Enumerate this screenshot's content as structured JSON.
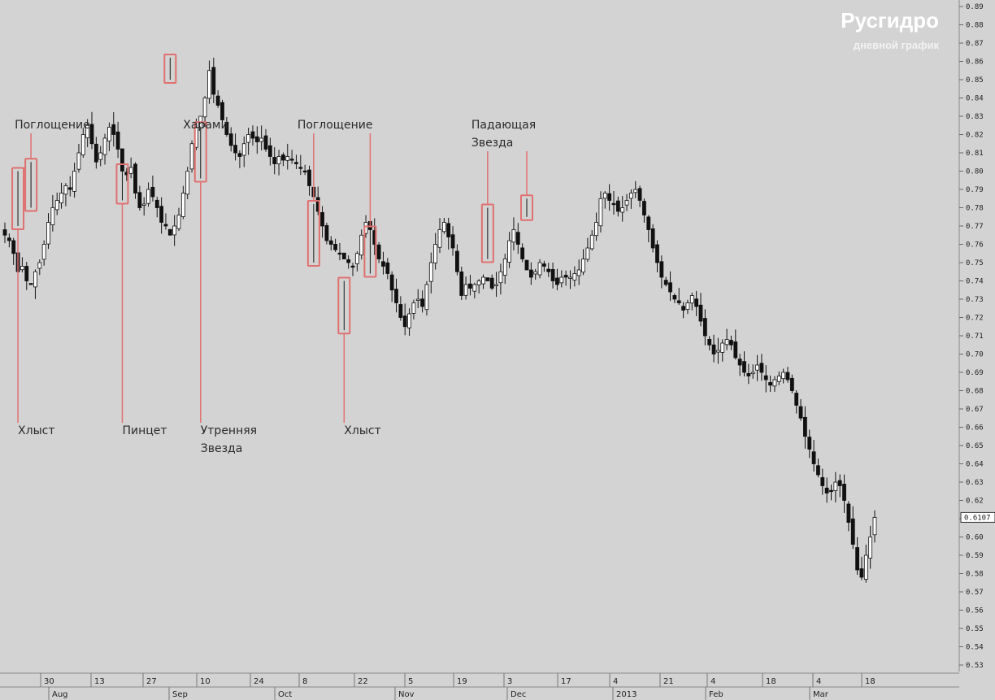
{
  "chart_data": {
    "type": "candlestick",
    "title": "Русгидро",
    "subtitle": "дневной график",
    "ylim": [
      0.53,
      0.89
    ],
    "y_ticks": [
      "0.89",
      "0.88",
      "0.87",
      "0.86",
      "0.85",
      "0.84",
      "0.83",
      "0.82",
      "0.81",
      "0.80",
      "0.79",
      "0.78",
      "0.77",
      "0.76",
      "0.75",
      "0.74",
      "0.73",
      "0.72",
      "0.71",
      "0.70",
      "0.69",
      "0.68",
      "0.67",
      "0.66",
      "0.65",
      "0.64",
      "0.63",
      "0.62",
      "0.61",
      "0.60",
      "0.59",
      "0.58",
      "0.57",
      "0.56",
      "0.55",
      "0.54",
      "0.53"
    ],
    "last_price_label": "0.6107",
    "last_price": 0.6107,
    "x_day_ticks": [
      "30",
      "13",
      "27",
      "10",
      "24",
      "8",
      "22",
      "5",
      "19",
      "3",
      "17",
      "4",
      "21",
      "4",
      "18",
      "4",
      "18"
    ],
    "x_month_ticks": [
      "Aug",
      "Sep",
      "Oct",
      "Nov",
      "Dec",
      "2013",
      "Feb",
      "Mar"
    ],
    "close_path": [
      0.765,
      0.762,
      0.755,
      0.745,
      0.748,
      0.74,
      0.738,
      0.745,
      0.75,
      0.76,
      0.772,
      0.78,
      0.784,
      0.788,
      0.792,
      0.79,
      0.8,
      0.81,
      0.82,
      0.825,
      0.815,
      0.805,
      0.81,
      0.818,
      0.824,
      0.82,
      0.812,
      0.8,
      0.798,
      0.802,
      0.788,
      0.78,
      0.782,
      0.79,
      0.786,
      0.78,
      0.772,
      0.77,
      0.765,
      0.77,
      0.776,
      0.788,
      0.8,
      0.815,
      0.824,
      0.83,
      0.84,
      0.855,
      0.842,
      0.836,
      0.828,
      0.82,
      0.814,
      0.81,
      0.808,
      0.815,
      0.82,
      0.818,
      0.816,
      0.818,
      0.812,
      0.808,
      0.804,
      0.808,
      0.806,
      0.808,
      0.806,
      0.804,
      0.802,
      0.8,
      0.792,
      0.786,
      0.778,
      0.77,
      0.762,
      0.76,
      0.757,
      0.755,
      0.752,
      0.75,
      0.748,
      0.755,
      0.765,
      0.772,
      0.768,
      0.76,
      0.752,
      0.748,
      0.744,
      0.735,
      0.728,
      0.72,
      0.715,
      0.722,
      0.728,
      0.73,
      0.726,
      0.738,
      0.75,
      0.76,
      0.768,
      0.772,
      0.764,
      0.758,
      0.745,
      0.732,
      0.738,
      0.736,
      0.738,
      0.74,
      0.742,
      0.74,
      0.736,
      0.738,
      0.745,
      0.752,
      0.762,
      0.768,
      0.76,
      0.752,
      0.746,
      0.742,
      0.745,
      0.75,
      0.748,
      0.745,
      0.74,
      0.738,
      0.742,
      0.742,
      0.742,
      0.744,
      0.746,
      0.752,
      0.758,
      0.765,
      0.772,
      0.785,
      0.788,
      0.784,
      0.782,
      0.778,
      0.78,
      0.784,
      0.788,
      0.79,
      0.784,
      0.776,
      0.768,
      0.758,
      0.75,
      0.742,
      0.738,
      0.734,
      0.73,
      0.728,
      0.724,
      0.728,
      0.732,
      0.726,
      0.718,
      0.71,
      0.705,
      0.7,
      0.702,
      0.706,
      0.708,
      0.705,
      0.698,
      0.694,
      0.69,
      0.688,
      0.69,
      0.694,
      0.69,
      0.686,
      0.683,
      0.686,
      0.688,
      0.69,
      0.686,
      0.68,
      0.672,
      0.665,
      0.655,
      0.648,
      0.64,
      0.634,
      0.628,
      0.624,
      0.625,
      0.63,
      0.628,
      0.62,
      0.608,
      0.596,
      0.582,
      0.578,
      0.59,
      0.6,
      0.6107
    ],
    "annotations": [
      {
        "label": [
          "Поглощение"
        ],
        "label_pos": "top",
        "targets": [
          1
        ]
      },
      {
        "label": [
          "Хлыст"
        ],
        "label_pos": "bottom",
        "targets": [
          0
        ]
      },
      {
        "label": [
          "Пинцет"
        ],
        "label_pos": "bottom",
        "targets": [
          2
        ]
      },
      {
        "label": [
          "Харами"
        ],
        "label_pos": "top",
        "targets": [
          3
        ]
      },
      {
        "label": [
          "Утренняя",
          "Звезда"
        ],
        "label_pos": "bottom",
        "targets": [
          4
        ]
      },
      {
        "label": [
          "Поглощение"
        ],
        "label_pos": "top",
        "targets": [
          5,
          7
        ]
      },
      {
        "label": [
          "Хлыст"
        ],
        "label_pos": "bottom",
        "targets": [
          6
        ]
      },
      {
        "label": [
          "Падающая",
          "Звезда"
        ],
        "label_pos": "top",
        "targets": [
          8,
          9
        ]
      }
    ],
    "pattern_candles": [
      {
        "i": 3,
        "hi": 0.8,
        "lo": 0.77
      },
      {
        "i": 6,
        "hi": 0.805,
        "lo": 0.78
      },
      {
        "i": 27,
        "hi": 0.802,
        "lo": 0.784
      },
      {
        "i": 38,
        "hi": 0.862,
        "lo": 0.85
      },
      {
        "i": 45,
        "hi": 0.825,
        "lo": 0.796
      },
      {
        "i": 71,
        "hi": 0.782,
        "lo": 0.75
      },
      {
        "i": 78,
        "hi": 0.74,
        "lo": 0.713
      },
      {
        "i": 84,
        "hi": 0.768,
        "lo": 0.744
      },
      {
        "i": 111,
        "hi": 0.78,
        "lo": 0.752
      },
      {
        "i": 120,
        "hi": 0.785,
        "lo": 0.775
      }
    ],
    "colors": {
      "background": "#d3d3d3",
      "bull_candle": "#ffffff",
      "bear_candle": "#111111",
      "annotation": "#e07070",
      "axis_text": "#222222",
      "title": "#ffffff"
    }
  }
}
